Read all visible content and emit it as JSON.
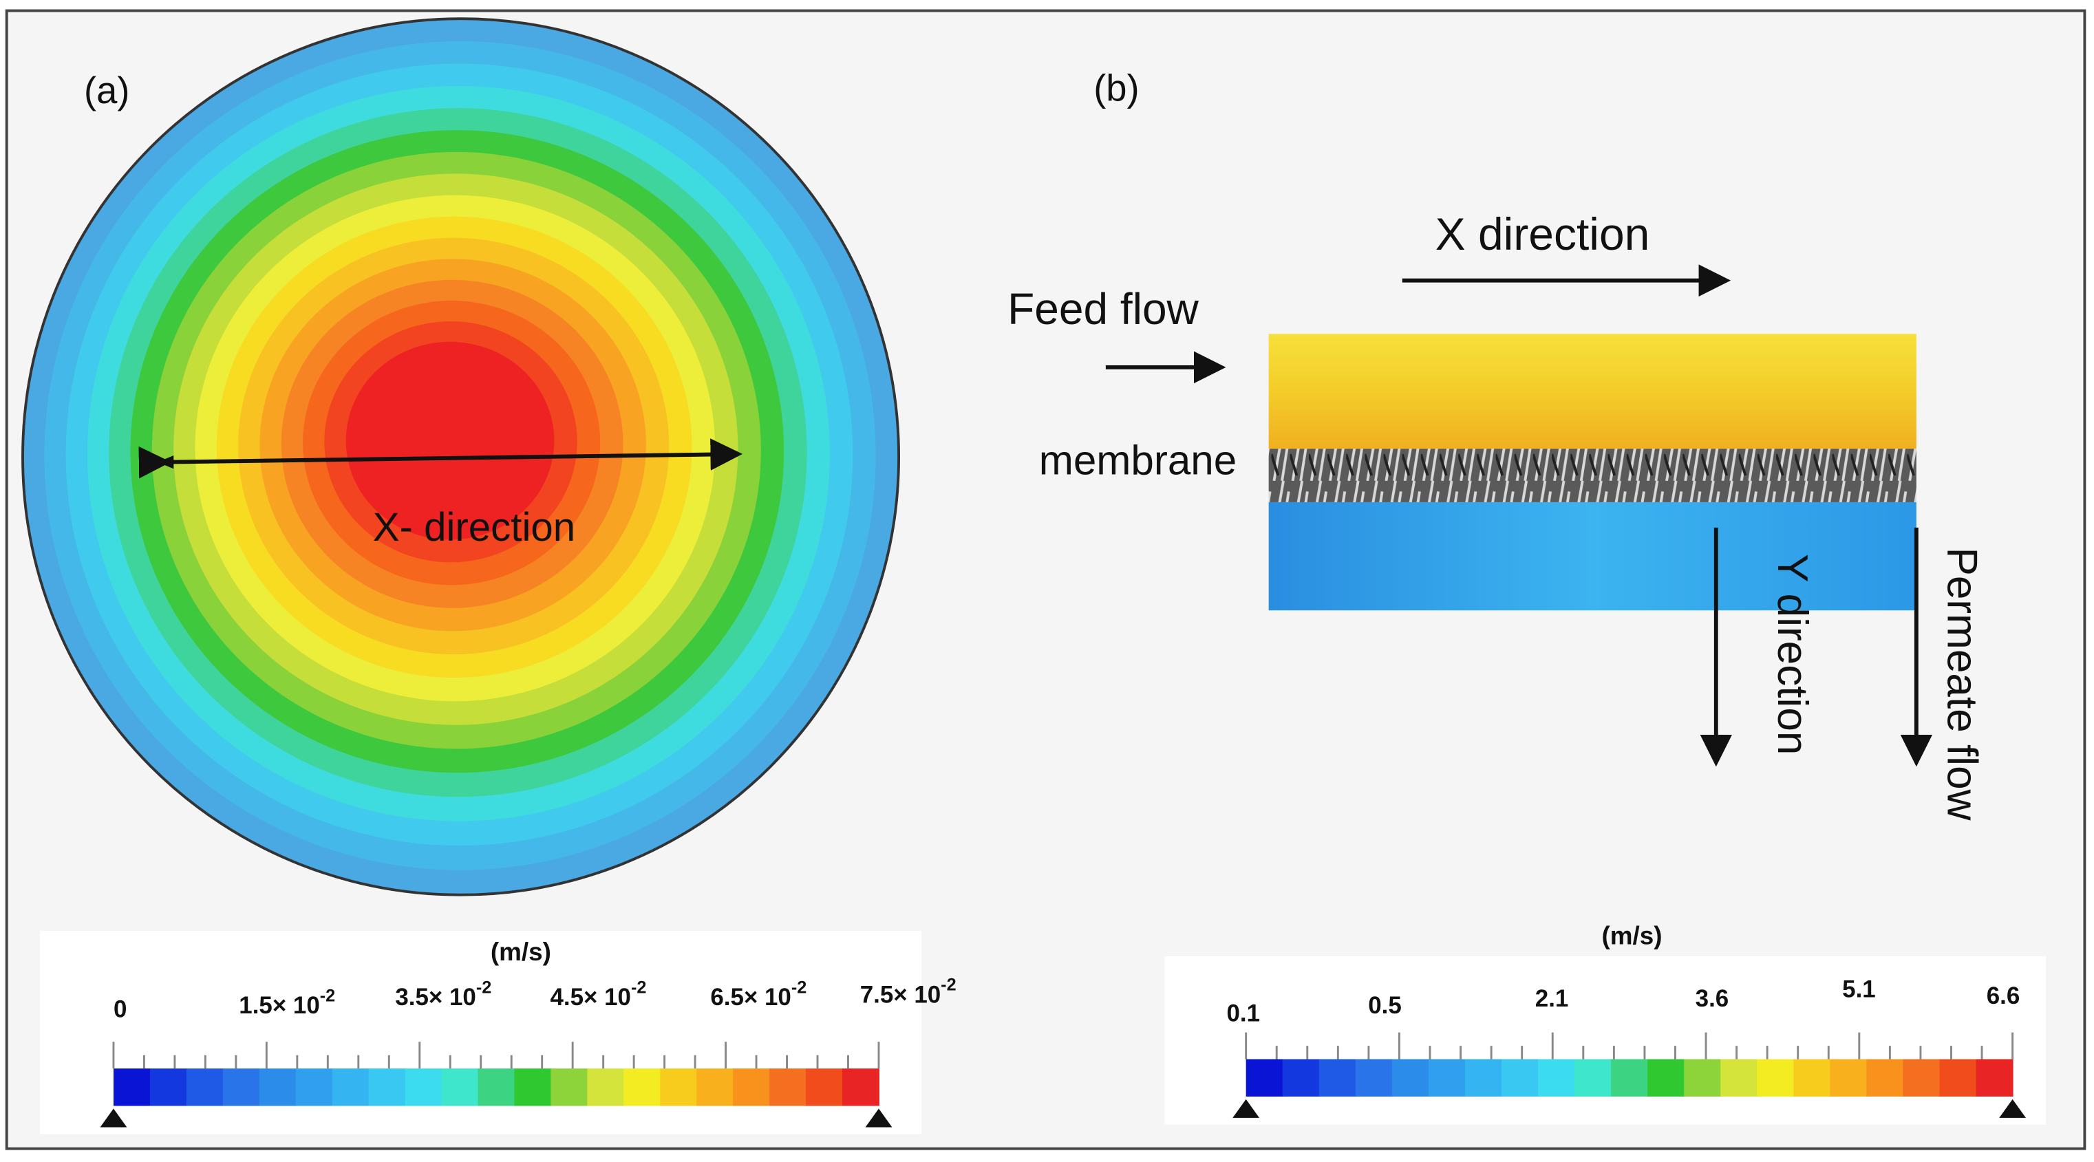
{
  "panel_a": {
    "label": "(a)",
    "annotation": "X- direction",
    "colorbar": {
      "unit": "(m/s)",
      "ticks": [
        {
          "text": "0"
        },
        {
          "text": "1.5× 10",
          "sup": "-2"
        },
        {
          "text": "3.5× 10",
          "sup": "-2"
        },
        {
          "text": "4.5× 10",
          "sup": "-2"
        },
        {
          "text": "6.5× 10",
          "sup": "-2"
        },
        {
          "text": "7.5× 10",
          "sup": "-2"
        }
      ]
    }
  },
  "panel_b": {
    "label": "(b)",
    "x_direction": "X  direction",
    "feed_flow": "Feed flow",
    "membrane": "membrane",
    "y_direction": "Y direction",
    "permeate_flow": "Permeate flow",
    "colorbar": {
      "unit": "(m/s)",
      "ticks": [
        {
          "text": "0.1"
        },
        {
          "text": "0.5"
        },
        {
          "text": "2.1"
        },
        {
          "text": "3.6"
        },
        {
          "text": "5.1"
        },
        {
          "text": "6.6"
        }
      ]
    }
  }
}
